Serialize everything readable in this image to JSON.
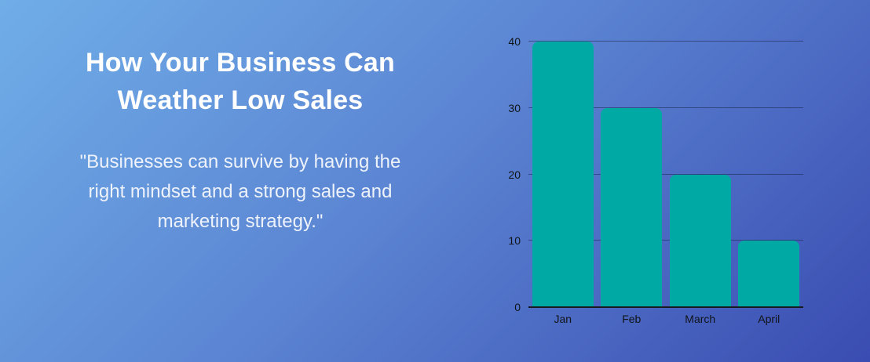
{
  "slide": {
    "title": "How Your Business Can\nWeather Low Sales",
    "quote": "\"Businesses can survive by having the\nright mindset and a strong sales and\nmarketing strategy.\""
  },
  "colors": {
    "background_gradient_start": "#70aee8",
    "background_gradient_mid": "#5b84d2",
    "background_gradient_end": "#3a4cb1",
    "title_color": "#ffffff",
    "quote_color": "#eef2fa",
    "bar_color": "#00a9a4",
    "tick_label_color": "#101418"
  },
  "chart_data": {
    "type": "bar",
    "categories": [
      "Jan",
      "Feb",
      "March",
      "April"
    ],
    "values": [
      40,
      30,
      20,
      10
    ],
    "title": "",
    "xlabel": "",
    "ylabel": "",
    "ylim": [
      0,
      40
    ],
    "yticks": [
      0,
      10,
      20,
      30,
      40
    ],
    "grid": true,
    "legend": false,
    "bar_color": "#00a9a4"
  }
}
